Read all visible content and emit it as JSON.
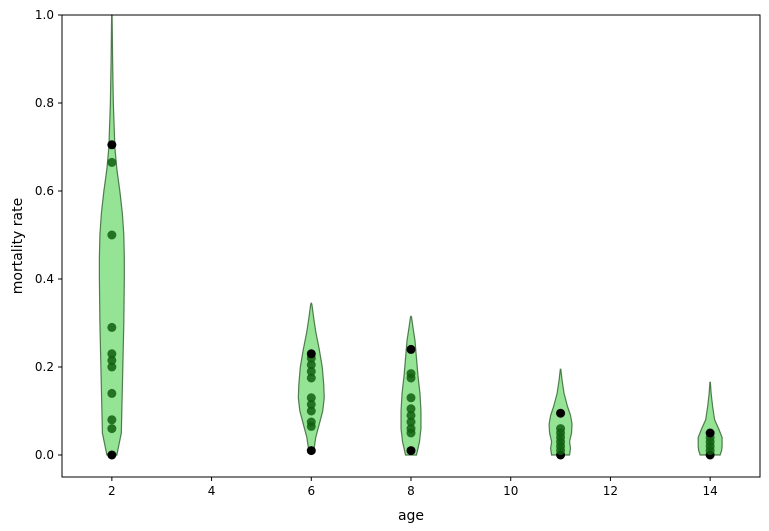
{
  "chart_data": {
    "type": "violin",
    "xlabel": "age",
    "ylabel": "mortality rate",
    "xlim": [
      1,
      15
    ],
    "ylim": [
      -0.05,
      1.0
    ],
    "xticks": [
      2,
      4,
      6,
      8,
      10,
      12,
      14
    ],
    "xtick_labels": [
      "2",
      "4",
      "6",
      "8",
      "10",
      "12",
      "14"
    ],
    "yticks": [
      0.0,
      0.2,
      0.4,
      0.6,
      0.8,
      1.0
    ],
    "ytick_labels": [
      "0.0",
      "0.2",
      "0.4",
      "0.6",
      "0.8",
      "1.0"
    ],
    "grid": false,
    "colors": {
      "violin_fill": "#4fd04f",
      "violin_edge": "#2f5f2f",
      "point": "#0f5f0f",
      "point_extreme": "#000000"
    },
    "groups": [
      {
        "x": 2,
        "points": [
          0.0,
          0.06,
          0.08,
          0.14,
          0.2,
          0.215,
          0.23,
          0.29,
          0.5,
          0.665,
          0.705
        ],
        "violin": [
          [
            0.0,
            0.1
          ],
          [
            0.05,
            0.19
          ],
          [
            0.1,
            0.2
          ],
          [
            0.2,
            0.22
          ],
          [
            0.3,
            0.24
          ],
          [
            0.4,
            0.25
          ],
          [
            0.45,
            0.25
          ],
          [
            0.5,
            0.24
          ],
          [
            0.55,
            0.21
          ],
          [
            0.6,
            0.16
          ],
          [
            0.65,
            0.1
          ],
          [
            0.7,
            0.06
          ],
          [
            0.8,
            0.03
          ],
          [
            0.9,
            0.015
          ],
          [
            1.0,
            0.005
          ]
        ]
      },
      {
        "x": 6,
        "points": [
          0.01,
          0.065,
          0.075,
          0.1,
          0.115,
          0.13,
          0.175,
          0.19,
          0.205,
          0.22,
          0.23
        ],
        "violin": [
          [
            0.01,
            0.05
          ],
          [
            0.04,
            0.09
          ],
          [
            0.07,
            0.16
          ],
          [
            0.1,
            0.23
          ],
          [
            0.13,
            0.26
          ],
          [
            0.16,
            0.25
          ],
          [
            0.2,
            0.22
          ],
          [
            0.24,
            0.16
          ],
          [
            0.28,
            0.09
          ],
          [
            0.31,
            0.05
          ],
          [
            0.34,
            0.015
          ],
          [
            0.345,
            0.005
          ]
        ]
      },
      {
        "x": 8,
        "points": [
          0.01,
          0.05,
          0.06,
          0.075,
          0.09,
          0.105,
          0.13,
          0.175,
          0.185,
          0.24
        ],
        "violin": [
          [
            0.0,
            0.11
          ],
          [
            0.03,
            0.17
          ],
          [
            0.06,
            0.2
          ],
          [
            0.1,
            0.2
          ],
          [
            0.14,
            0.18
          ],
          [
            0.18,
            0.14
          ],
          [
            0.22,
            0.11
          ],
          [
            0.26,
            0.08
          ],
          [
            0.29,
            0.04
          ],
          [
            0.31,
            0.015
          ],
          [
            0.315,
            0.005
          ]
        ]
      },
      {
        "x": 11,
        "points": [
          0.0,
          0.01,
          0.02,
          0.03,
          0.04,
          0.05,
          0.06,
          0.095
        ],
        "violin": [
          [
            0.0,
            0.18
          ],
          [
            0.015,
            0.2
          ],
          [
            0.03,
            0.18
          ],
          [
            0.05,
            0.22
          ],
          [
            0.07,
            0.23
          ],
          [
            0.09,
            0.2
          ],
          [
            0.11,
            0.14
          ],
          [
            0.14,
            0.07
          ],
          [
            0.17,
            0.03
          ],
          [
            0.19,
            0.01
          ],
          [
            0.195,
            0.005
          ]
        ]
      },
      {
        "x": 14,
        "points": [
          0.0,
          0.01,
          0.02,
          0.03,
          0.04,
          0.05
        ],
        "violin": [
          [
            0.0,
            0.2
          ],
          [
            0.01,
            0.23
          ],
          [
            0.02,
            0.24
          ],
          [
            0.04,
            0.24
          ],
          [
            0.06,
            0.17
          ],
          [
            0.08,
            0.09
          ],
          [
            0.11,
            0.05
          ],
          [
            0.14,
            0.02
          ],
          [
            0.165,
            0.005
          ]
        ]
      }
    ]
  }
}
